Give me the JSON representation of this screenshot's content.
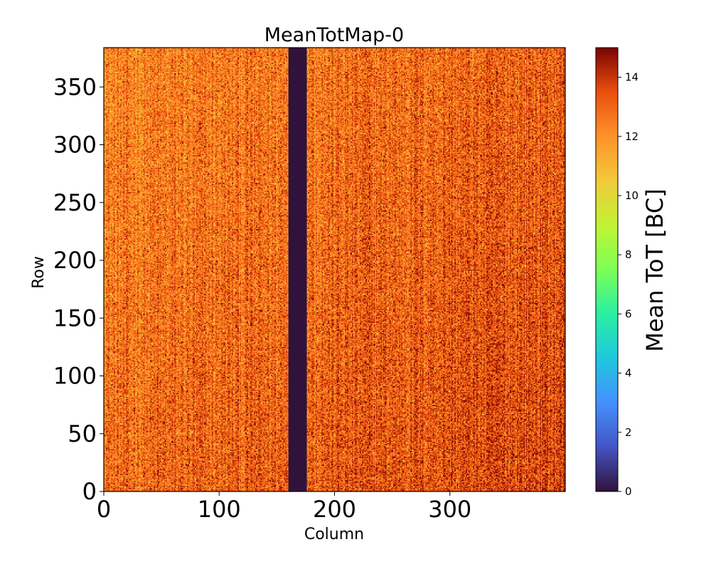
{
  "chart_data": {
    "type": "heatmap",
    "title": "MeanTotMap-0",
    "xlabel": "Column",
    "ylabel": "Row",
    "xlim": [
      0,
      400
    ],
    "ylim": [
      0,
      384
    ],
    "xticks": [
      0,
      100,
      200,
      300
    ],
    "yticks": [
      0,
      50,
      100,
      150,
      200,
      250,
      300,
      350
    ],
    "colorbar": {
      "label": "Mean ToT [BC]",
      "range": [
        0,
        15
      ],
      "ticks": [
        0,
        2,
        4,
        6,
        8,
        10,
        12,
        14
      ],
      "colormap": "turbo"
    },
    "regions": [
      {
        "name": "main sensor area",
        "columns": [
          0,
          400
        ],
        "rows": [
          0,
          384
        ],
        "typical_value_range": [
          10,
          15
        ]
      },
      {
        "name": "dead column band",
        "columns": [
          160,
          176
        ],
        "rows": [
          0,
          384
        ],
        "value": 0
      }
    ]
  },
  "colors": {
    "band": "#30123b",
    "frame": "#000000",
    "background": "#ffffff"
  }
}
